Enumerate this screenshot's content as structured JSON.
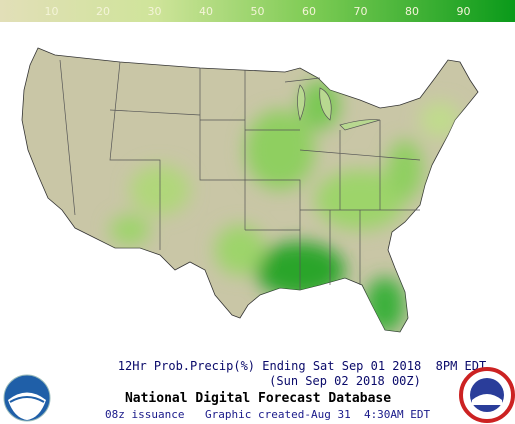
{
  "colorbar": {
    "ticks": [
      10,
      20,
      30,
      40,
      50,
      60,
      70,
      80,
      90
    ]
  },
  "caption": {
    "line1": "12Hr Prob.Precip(%) Ending Sat Sep 01 2018  8PM EDT",
    "line2": "(Sun Sep 02 2018 00Z)",
    "title": "National Digital Forecast Database",
    "issuance": "08z issuance",
    "created": "Graphic created-Aug 31  4:30AM EDT"
  }
}
